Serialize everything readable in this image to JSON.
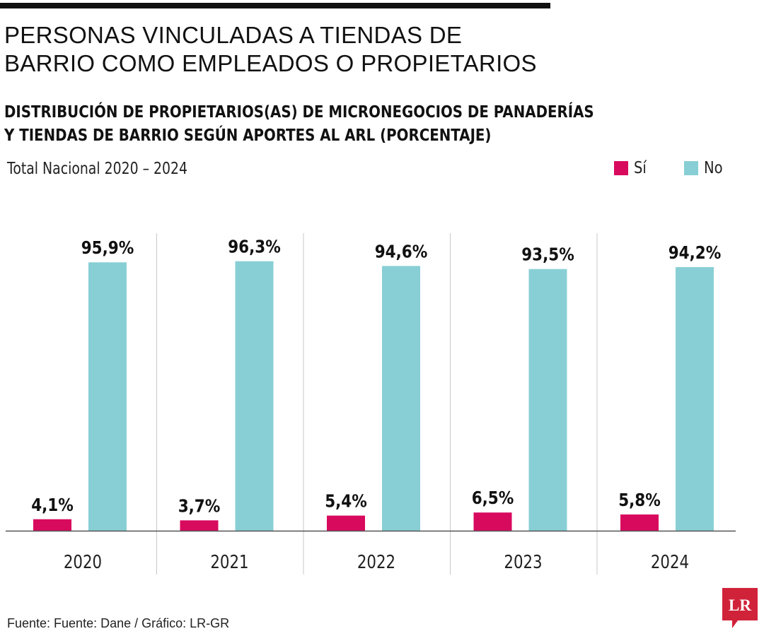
{
  "header": {
    "title_line1": "PERSONAS VINCULADAS A TIENDAS DE",
    "title_line2": "BARRIO COMO EMPLEADOS O PROPIETARIOS",
    "subtitle_line1": "DISTRIBUCIÓN DE PROPIETARIOS(AS) DE MICRONEGOCIOS DE PANADERÍAS",
    "subtitle_line2": "Y TIENDAS DE BARRIO SEGÚN APORTES AL ARL (PORCENTAJE)",
    "scope": "Total Nacional 2020 – 2024"
  },
  "footer": {
    "source": "Fuente: Fuente: Dane / Gráfico: LR-GR",
    "logo_text": "LR"
  },
  "colors": {
    "si": "#d80a5e",
    "no": "#88cfd5",
    "logo": "#d0233a",
    "axis": "#555555",
    "divider": "#c8c8c8"
  },
  "chart_data": {
    "type": "bar",
    "categories": [
      "2020",
      "2021",
      "2022",
      "2023",
      "2024"
    ],
    "series": [
      {
        "name": "Sí",
        "values": [
          4.1,
          3.7,
          5.4,
          6.5,
          5.8
        ],
        "labels": [
          "4,1%",
          "3,7%",
          "5,4%",
          "6,5%",
          "5,8%"
        ]
      },
      {
        "name": "No",
        "values": [
          95.9,
          96.3,
          94.6,
          93.5,
          94.2
        ],
        "labels": [
          "95,9%",
          "96,3%",
          "94,6%",
          "93,5%",
          "94,2%"
        ]
      }
    ],
    "ylim": [
      0,
      100
    ],
    "grid": false,
    "legend": "top-right"
  }
}
